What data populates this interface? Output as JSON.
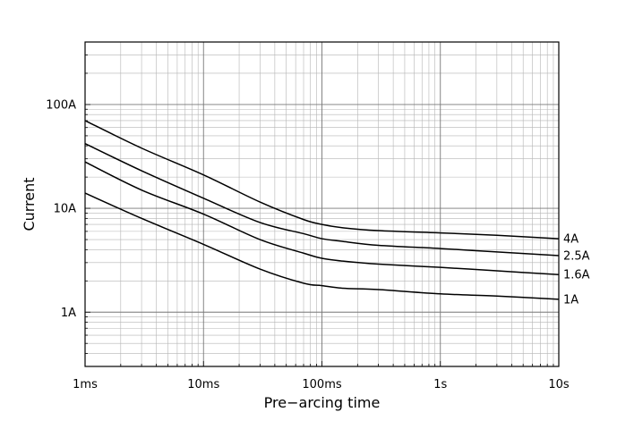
{
  "chart_data": {
    "type": "line",
    "xlabel": "Pre−arcing time",
    "ylabel": "Current",
    "x_scale": "log",
    "y_scale": "log",
    "xlim": [
      0.001,
      10
    ],
    "ylim": [
      0.3,
      400
    ],
    "grid": true,
    "x_ticks": [
      {
        "value": 0.001,
        "label": "1ms"
      },
      {
        "value": 0.01,
        "label": "10ms"
      },
      {
        "value": 0.1,
        "label": "100ms"
      },
      {
        "value": 1,
        "label": "1s"
      },
      {
        "value": 10,
        "label": "10s"
      }
    ],
    "y_ticks": [
      {
        "value": 1,
        "label": "1A"
      },
      {
        "value": 10,
        "label": "10A"
      },
      {
        "value": 100,
        "label": "100A"
      }
    ],
    "series": [
      {
        "name": "4A",
        "points": [
          [
            0.001,
            70
          ],
          [
            0.003,
            38
          ],
          [
            0.01,
            21
          ],
          [
            0.03,
            11.5
          ],
          [
            0.07,
            7.8
          ],
          [
            0.1,
            7
          ],
          [
            0.15,
            6.5
          ],
          [
            0.3,
            6.1
          ],
          [
            1,
            5.8
          ],
          [
            3,
            5.5
          ],
          [
            10,
            5.1
          ]
        ]
      },
      {
        "name": "2.5A",
        "points": [
          [
            0.001,
            42
          ],
          [
            0.003,
            23
          ],
          [
            0.01,
            12.5
          ],
          [
            0.03,
            7.3
          ],
          [
            0.07,
            5.7
          ],
          [
            0.1,
            5.1
          ],
          [
            0.15,
            4.8
          ],
          [
            0.3,
            4.4
          ],
          [
            1,
            4.1
          ],
          [
            3,
            3.8
          ],
          [
            10,
            3.5
          ]
        ]
      },
      {
        "name": "1.6A",
        "points": [
          [
            0.001,
            28
          ],
          [
            0.003,
            15
          ],
          [
            0.01,
            8.8
          ],
          [
            0.03,
            5
          ],
          [
            0.07,
            3.7
          ],
          [
            0.1,
            3.3
          ],
          [
            0.15,
            3.1
          ],
          [
            0.3,
            2.9
          ],
          [
            1,
            2.7
          ],
          [
            3,
            2.5
          ],
          [
            10,
            2.3
          ]
        ]
      },
      {
        "name": "1A",
        "points": [
          [
            0.001,
            14
          ],
          [
            0.003,
            8
          ],
          [
            0.01,
            4.5
          ],
          [
            0.03,
            2.6
          ],
          [
            0.07,
            1.9
          ],
          [
            0.1,
            1.8
          ],
          [
            0.15,
            1.7
          ],
          [
            0.3,
            1.65
          ],
          [
            1,
            1.5
          ],
          [
            3,
            1.43
          ],
          [
            10,
            1.33
          ]
        ]
      }
    ]
  }
}
